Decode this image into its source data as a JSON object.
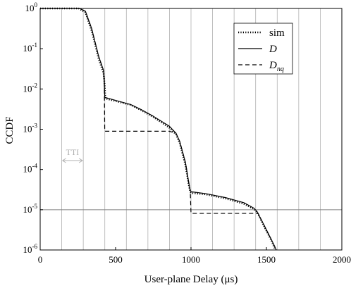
{
  "chart_data": {
    "type": "line",
    "xlabel": "User-plane Delay (μs)",
    "ylabel": "CCDF",
    "xlim": [
      0,
      2000
    ],
    "xticks": [
      0,
      500,
      1000,
      1500,
      2000
    ],
    "ylim": [
      1e-06,
      1
    ],
    "log_y": true,
    "yticks": [
      {
        "value": 1e-06,
        "label": "10",
        "exponent": "-6"
      },
      {
        "value": 1e-05,
        "label": "10",
        "exponent": "-5"
      },
      {
        "value": 0.0001,
        "label": "10",
        "exponent": "-4"
      },
      {
        "value": 0.001,
        "label": "10",
        "exponent": "-3"
      },
      {
        "value": 0.01,
        "label": "10",
        "exponent": "-2"
      },
      {
        "value": 0.1,
        "label": "10",
        "exponent": "-1"
      },
      {
        "value": 1,
        "label": "10",
        "exponent": "0"
      }
    ],
    "tti": 142.857,
    "tti_label": "TTI",
    "hline": 1e-05,
    "legend": "upper right",
    "series": [
      {
        "name": "sim",
        "color": "#000000",
        "style": "dotted",
        "x": [
          0,
          255,
          300,
          341,
          388,
          420,
          428,
          432,
          500,
          600,
          668,
          750,
          855,
          900,
          925,
          963,
          986,
          995,
          1000,
          1100,
          1229,
          1350,
          1416,
          1439,
          1486,
          1533,
          1550,
          1560
        ],
        "values": [
          1,
          1,
          0.8,
          0.28,
          0.055,
          0.025,
          0.012,
          0.0058,
          0.005,
          0.004,
          0.003,
          0.002,
          0.0011,
          0.00075,
          0.00045,
          0.00013,
          4e-05,
          2.8e-05,
          2.6e-05,
          2.4e-05,
          1.9e-05,
          1.4e-05,
          1.05e-05,
          8.5e-06,
          3.8e-06,
          1.7e-06,
          1.2e-06,
          1e-06
        ]
      },
      {
        "name": "D",
        "color": "#000000",
        "style": "solid",
        "x": [
          0,
          262,
          300,
          341,
          388,
          420,
          425,
          428,
          500,
          600,
          668,
          750,
          855,
          900,
          925,
          963,
          986,
          995,
          1000,
          1100,
          1229,
          1350,
          1416,
          1439,
          1486,
          1533,
          1556,
          1565
        ],
        "values": [
          1,
          1,
          0.85,
          0.32,
          0.064,
          0.029,
          0.015,
          0.0062,
          0.0052,
          0.0041,
          0.0031,
          0.0021,
          0.0012,
          0.0008,
          0.0005,
          0.00015,
          4.5e-05,
          3e-05,
          2.8e-05,
          2.5e-05,
          2e-05,
          1.5e-05,
          1.1e-05,
          8.9e-06,
          4e-06,
          1.8e-06,
          1.2e-06,
          1e-06
        ]
      },
      {
        "name": "D",
        "subscript": "nq",
        "color": "#000000",
        "style": "dashed",
        "x": [
          0,
          262,
          300,
          341,
          388,
          420,
          425,
          428,
          855,
          900,
          925,
          963,
          986,
          995,
          1000,
          1445,
          1486,
          1533,
          1556,
          1565
        ],
        "values": [
          1,
          1,
          0.85,
          0.32,
          0.064,
          0.029,
          0.015,
          0.00089,
          0.00089,
          0.0008,
          0.0005,
          0.00015,
          4.5e-05,
          3e-05,
          8.1e-06,
          8.1e-06,
          4e-06,
          1.8e-06,
          1.2e-06,
          1e-06
        ]
      }
    ]
  }
}
